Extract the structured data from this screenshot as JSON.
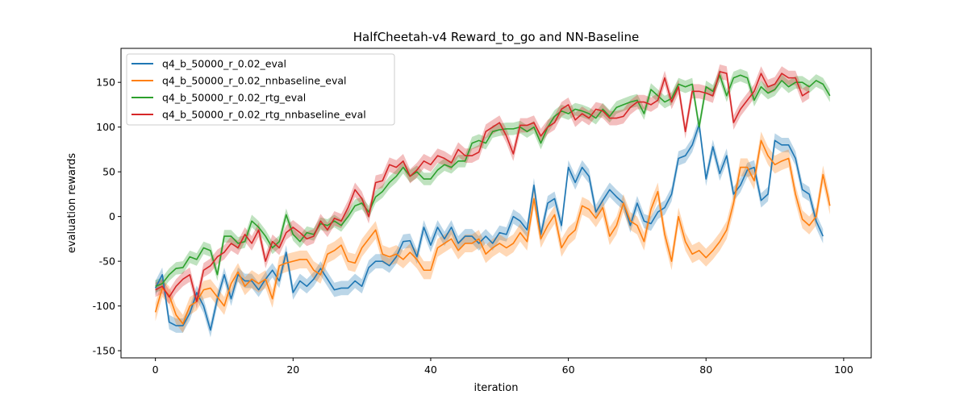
{
  "chart_data": {
    "type": "line",
    "title": "HalfCheetah-v4 Reward_to_go and NN-Baseline",
    "xlabel": "iteration",
    "ylabel": "evaluation rewards",
    "xlim": [
      -5,
      104
    ],
    "ylim": [
      -158,
      188
    ],
    "xticks": [
      0,
      20,
      40,
      60,
      80,
      100
    ],
    "yticks": [
      -150,
      -100,
      -50,
      0,
      50,
      100,
      150
    ],
    "grid": false,
    "legend_position": "top-left",
    "series": [
      {
        "name": "q4_b_50000_r_0.02_eval",
        "color": "#1f77b4",
        "band": 8,
        "values": [
          -80,
          -65,
          -118,
          -122,
          -122,
          -108,
          -85,
          -100,
          -127,
          -92,
          -65,
          -92,
          -65,
          -72,
          -72,
          -82,
          -70,
          -60,
          -72,
          -40,
          -85,
          -72,
          -78,
          -70,
          -58,
          -70,
          -82,
          -80,
          -80,
          -72,
          -78,
          -57,
          -50,
          -50,
          -55,
          -45,
          -28,
          -27,
          -45,
          -12,
          -32,
          -12,
          -25,
          -12,
          -30,
          -22,
          -22,
          -30,
          -22,
          -30,
          -18,
          -20,
          0,
          -5,
          -15,
          35,
          -20,
          15,
          20,
          -10,
          55,
          38,
          55,
          45,
          5,
          18,
          30,
          22,
          15,
          -10,
          15,
          -5,
          -8,
          5,
          10,
          25,
          65,
          68,
          80,
          103,
          42,
          78,
          48,
          68,
          25,
          35,
          52,
          55,
          18,
          25,
          85,
          80,
          80,
          65,
          30,
          25,
          -5,
          -22
        ]
      },
      {
        "name": "q4_b_50000_r_0.02_nnbaseline_eval",
        "color": "#ff7f0e",
        "band": 10,
        "values": [
          -107,
          -80,
          -88,
          -110,
          -120,
          -100,
          -95,
          -82,
          -80,
          -90,
          -100,
          -75,
          -62,
          -78,
          -70,
          -75,
          -70,
          -92,
          -55,
          -52,
          -50,
          -48,
          -48,
          -60,
          -65,
          -42,
          -38,
          -32,
          -50,
          -52,
          -35,
          -25,
          -15,
          -42,
          -45,
          -42,
          -48,
          -40,
          -48,
          -60,
          -60,
          -35,
          -30,
          -25,
          -38,
          -30,
          -30,
          -25,
          -42,
          -35,
          -30,
          -35,
          -30,
          -18,
          -28,
          20,
          -25,
          -10,
          2,
          -35,
          -22,
          -15,
          12,
          8,
          -2,
          10,
          -22,
          -10,
          15,
          -5,
          -10,
          -28,
          8,
          28,
          -20,
          -50,
          0,
          -28,
          -42,
          -38,
          -46,
          -38,
          -28,
          -15,
          15,
          55,
          55,
          40,
          85,
          68,
          58,
          62,
          65,
          25,
          -3,
          -10,
          0,
          47,
          12
        ]
      },
      {
        "name": "q4_b_50000_r_0.02_rtg_eval",
        "color": "#2ca02c",
        "band": 7,
        "values": [
          -78,
          -75,
          -65,
          -58,
          -57,
          -45,
          -48,
          -35,
          -38,
          -65,
          -22,
          -22,
          -30,
          -28,
          -5,
          -12,
          -22,
          -35,
          -28,
          2,
          -20,
          -28,
          -18,
          -20,
          -8,
          -10,
          -5,
          -10,
          0,
          12,
          15,
          5,
          22,
          28,
          38,
          45,
          55,
          45,
          50,
          42,
          42,
          52,
          58,
          55,
          62,
          62,
          82,
          85,
          82,
          95,
          97,
          98,
          98,
          100,
          95,
          100,
          82,
          100,
          112,
          118,
          115,
          120,
          118,
          115,
          110,
          120,
          112,
          122,
          125,
          128,
          130,
          115,
          142,
          135,
          128,
          132,
          148,
          145,
          148,
          100,
          145,
          140,
          158,
          135,
          155,
          158,
          155,
          130,
          145,
          138,
          142,
          152,
          145,
          150,
          150,
          145,
          152,
          148,
          135
        ]
      },
      {
        "name": "q4_b_50000_r_0.02_rtg_nnbaseline_eval",
        "color": "#d62728",
        "band": 8,
        "values": [
          -82,
          -78,
          -90,
          -78,
          -70,
          -65,
          -95,
          -60,
          -55,
          -45,
          -40,
          -30,
          -35,
          -20,
          -30,
          -15,
          -50,
          -28,
          -35,
          -18,
          -12,
          -18,
          -25,
          -22,
          -5,
          -15,
          -2,
          -5,
          10,
          30,
          20,
          0,
          38,
          40,
          58,
          55,
          62,
          45,
          52,
          62,
          58,
          68,
          65,
          60,
          75,
          68,
          68,
          72,
          95,
          100,
          105,
          90,
          70,
          102,
          102,
          105,
          90,
          100,
          105,
          120,
          125,
          108,
          115,
          110,
          120,
          118,
          110,
          110,
          112,
          122,
          128,
          128,
          125,
          130,
          155,
          128,
          145,
          95,
          140,
          140,
          138,
          135,
          162,
          160,
          105,
          120,
          130,
          140,
          160,
          145,
          148,
          160,
          155,
          155,
          135,
          140
        ]
      }
    ]
  }
}
